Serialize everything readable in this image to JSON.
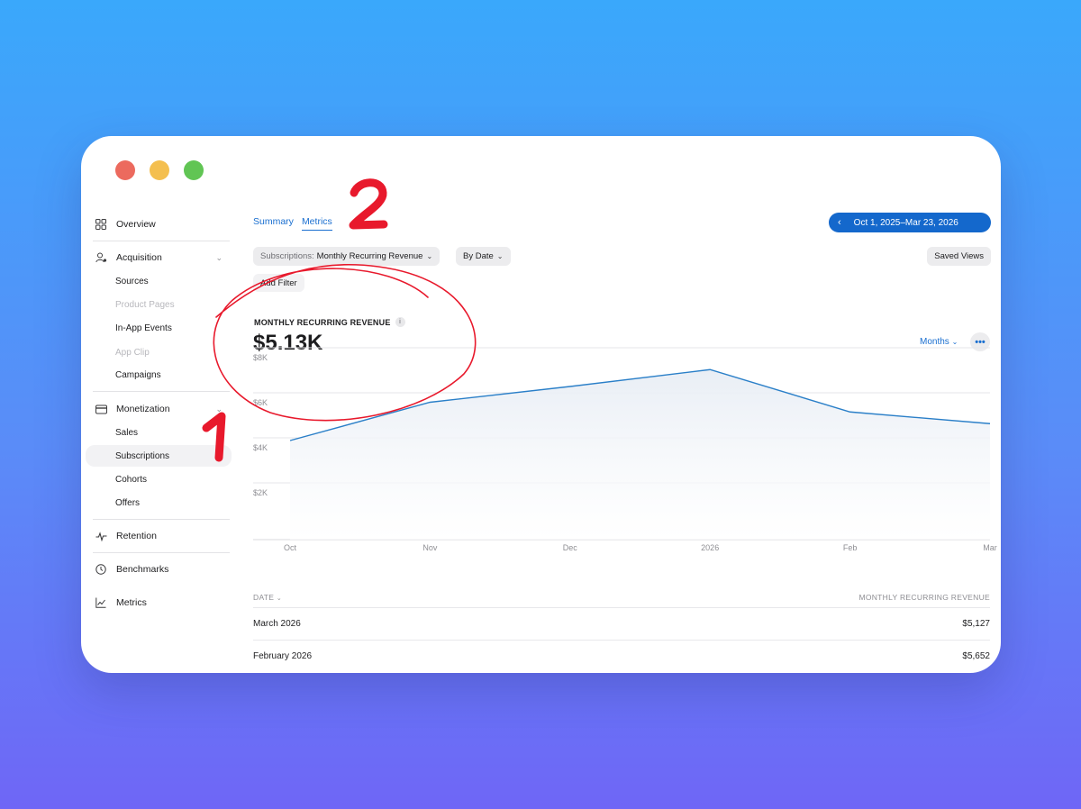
{
  "sidebar": {
    "overview": "Overview",
    "acquisition": "Acquisition",
    "acquisition_items": [
      "Sources",
      "Product Pages",
      "In-App Events",
      "App Clip",
      "Campaigns"
    ],
    "monetization": "Monetization",
    "monetization_items": [
      "Sales",
      "Subscriptions",
      "Cohorts",
      "Offers"
    ],
    "retention": "Retention",
    "benchmarks": "Benchmarks",
    "metrics": "Metrics"
  },
  "tabs": {
    "summary": "Summary",
    "metrics": "Metrics"
  },
  "date_range": "Oct 1, 2025–Mar 23, 2026",
  "filters": {
    "measure_prefix": "Subscriptions:",
    "measure_value": "Monthly Recurring Revenue",
    "by": "By Date",
    "add_filter": "Add Filter",
    "saved_views": "Saved Views"
  },
  "metric": {
    "title": "MONTHLY RECURRING REVENUE",
    "info": "i",
    "value": "$5.13K",
    "interval": "Months",
    "more": "•••"
  },
  "chart_data": {
    "type": "area",
    "x": [
      "Oct",
      "Nov",
      "Dec",
      "2026",
      "Feb",
      "Mar"
    ],
    "y_ticks": [
      "$8K",
      "$6K",
      "$4K",
      "$2K"
    ],
    "ylim": [
      0,
      8000
    ],
    "series": [
      {
        "values": [
          4400,
          6100,
          6800,
          7550,
          5670,
          5150
        ]
      }
    ],
    "grid": true,
    "colors": {
      "line": "#2a7fc8",
      "fill": "#e9eef5"
    }
  },
  "table": {
    "col_date": "DATE",
    "col_value": "MONTHLY RECURRING REVENUE",
    "rows": [
      {
        "date": "March 2026",
        "value": "$5,127"
      },
      {
        "date": "February 2026",
        "value": "$5,652"
      }
    ]
  },
  "annotations": {
    "label_1": "1",
    "label_2": "2",
    "color": "#e8192c"
  }
}
